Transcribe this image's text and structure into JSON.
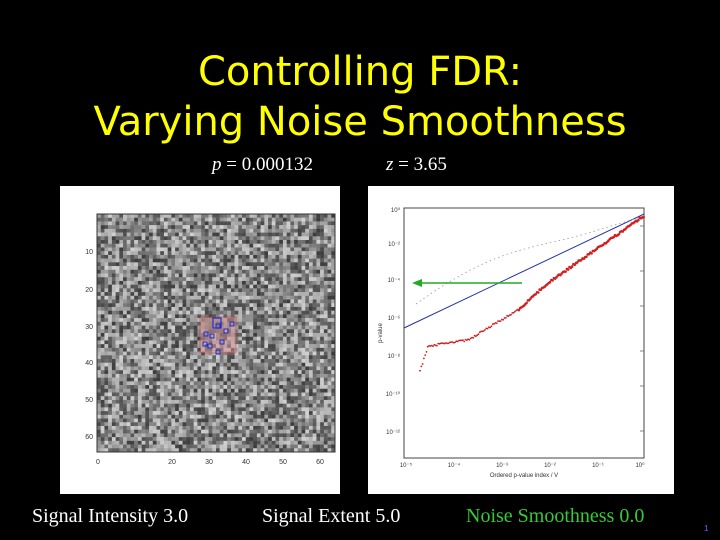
{
  "slide": {
    "title_line1": "Controlling FDR:",
    "title_line2": "Varying Noise Smoothness",
    "p_label": "p",
    "p_value": " = 0.000132",
    "z_label": "z",
    "z_value": " = 3.65",
    "page_number": "1",
    "colors": {
      "title": "#ffff00",
      "caption_highlight": "#33cc33",
      "background": "#000000"
    }
  },
  "image_panel": {
    "y_ticks": [
      "10",
      "20",
      "30",
      "40",
      "50",
      "60"
    ],
    "x_ticks": [
      "0",
      "20",
      "30",
      "40",
      "50",
      "60"
    ]
  },
  "pvalue_plot": {
    "y_ticks": [
      "10⁰",
      "10⁻²",
      "10⁻⁴",
      "10⁻⁶",
      "10⁻⁸",
      "10⁻¹⁰",
      "10⁻¹²"
    ],
    "x_ticks": [
      "10⁻⁵",
      "10⁻⁴",
      "10⁻³",
      "10⁻²",
      "10⁻¹",
      "10⁰"
    ],
    "xlabel": "Ordered p-value index / V",
    "ylabel": "p-value"
  },
  "captions": {
    "signal_intensity": "Signal Intensity  3.0",
    "signal_extent": "Signal Extent  5.0",
    "noise_smoothness": "Noise Smoothness  0.0"
  }
}
